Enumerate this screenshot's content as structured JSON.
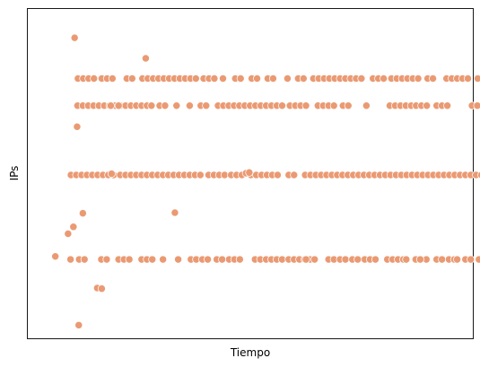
{
  "chart_data": {
    "type": "scatter",
    "title": "",
    "xlabel": "Tiempo",
    "ylabel": "IPs",
    "xlim": [
      0,
      100
    ],
    "ylim": [
      0,
      100
    ],
    "x_ticks_visible": false,
    "y_ticks_visible": false,
    "grid": false,
    "marker_color": "#EA9A73",
    "marker_edge_color": "#FFFFFF",
    "rows": [
      {
        "name": "row-1",
        "y": 82,
        "x_ranges": [
          [
            8.7,
            13.0
          ],
          [
            14.5,
            17.8
          ],
          [
            20.6,
            22.6
          ],
          [
            24.4,
            37.6
          ],
          [
            39.3,
            42.6
          ],
          [
            44.0,
            45.2
          ],
          [
            47.0,
            49.5
          ],
          [
            51.0,
            53.2
          ],
          [
            54.9,
            57.3
          ],
          [
            59.7,
            60.5
          ],
          [
            62.3,
            64.3
          ],
          [
            66.0,
            78.7
          ],
          [
            80.5,
            83.2
          ],
          [
            85.0,
            92.0
          ],
          [
            93.8,
            95.8
          ],
          [
            98.4,
            103.8
          ],
          [
            106.0,
            106.5
          ]
        ],
        "x_points": []
      },
      {
        "name": "row-2",
        "y": 73,
        "x_ranges": [
          [
            8.6,
            26.2
          ],
          [
            28.6,
            30.7
          ],
          [
            32.7,
            33.2
          ],
          [
            35.9,
            36.9
          ],
          [
            38.6,
            40.5
          ],
          [
            42.8,
            58.5
          ],
          [
            60.3,
            64.5
          ],
          [
            67.1,
            71.0
          ],
          [
            73.2,
            74.6
          ],
          [
            78.9,
            79.7
          ],
          [
            84.6,
            89.8
          ],
          [
            91.0,
            93.8
          ],
          [
            96.0,
            99.2
          ],
          [
            104.6,
            106.1
          ]
        ],
        "x_points": [
          16.7,
          18.6,
          26.6
        ]
      },
      {
        "name": "row-3",
        "y": 50,
        "x_ranges": [
          [
            7.0,
            17.5
          ],
          [
            19.0,
            38.5
          ],
          [
            40.5,
            44.6
          ],
          [
            46.0,
            48.7
          ],
          [
            50.8,
            58.2
          ],
          [
            60.0,
            62.5
          ],
          [
            64.0,
            108.0
          ]
        ],
        "x_points": []
      },
      {
        "name": "row-4",
        "y": 22,
        "x_ranges": [
          [
            9.0,
            11.2
          ],
          [
            14.4,
            16.1
          ],
          [
            18.6,
            22.1
          ],
          [
            24.2,
            27.3
          ],
          [
            29.4,
            30.5
          ],
          [
            36.2,
            37.5
          ],
          [
            39.0,
            41.5
          ],
          [
            42.5,
            44.8
          ],
          [
            45.5,
            49.2
          ],
          [
            51.8,
            54.1
          ],
          [
            54.5,
            58.4
          ],
          [
            60.0,
            65.2
          ],
          [
            66.3,
            67.2
          ],
          [
            69.7,
            71.5
          ],
          [
            72.5,
            74.8
          ],
          [
            75.5,
            76.2
          ],
          [
            78.5,
            82.0
          ],
          [
            84.0,
            88.7
          ],
          [
            90.9,
            91.8
          ],
          [
            92.2,
            94.2
          ],
          [
            96.0,
            98.0
          ],
          [
            99.0,
            100.6
          ]
        ],
        "x_points": [
          6.9,
          33.1,
          64.2,
          76.8,
          88.6,
          92.0,
          101.0,
          103.0,
          104.3,
          106.3
        ]
      },
      {
        "name": "row-5",
        "y": 0.2,
        "x_ranges": [],
        "x_points": [
          8.9
        ]
      }
    ],
    "outliers": [
      {
        "x": 7.9,
        "y": 95.5
      },
      {
        "x": 25.2,
        "y": 88.7
      },
      {
        "x": 8.5,
        "y": 66.0
      },
      {
        "x": 9.9,
        "y": 37.3
      },
      {
        "x": 32.3,
        "y": 37.5
      },
      {
        "x": 7.6,
        "y": 32.8
      },
      {
        "x": 6.3,
        "y": 30.5
      },
      {
        "x": 3.2,
        "y": 23.0
      },
      {
        "x": 13.4,
        "y": 12.5
      },
      {
        "x": 14.5,
        "y": 12.3
      },
      {
        "x": 16.9,
        "y": 50.4
      },
      {
        "x": 49.6,
        "y": 50.6
      },
      {
        "x": 50.4,
        "y": 50.8
      }
    ]
  }
}
